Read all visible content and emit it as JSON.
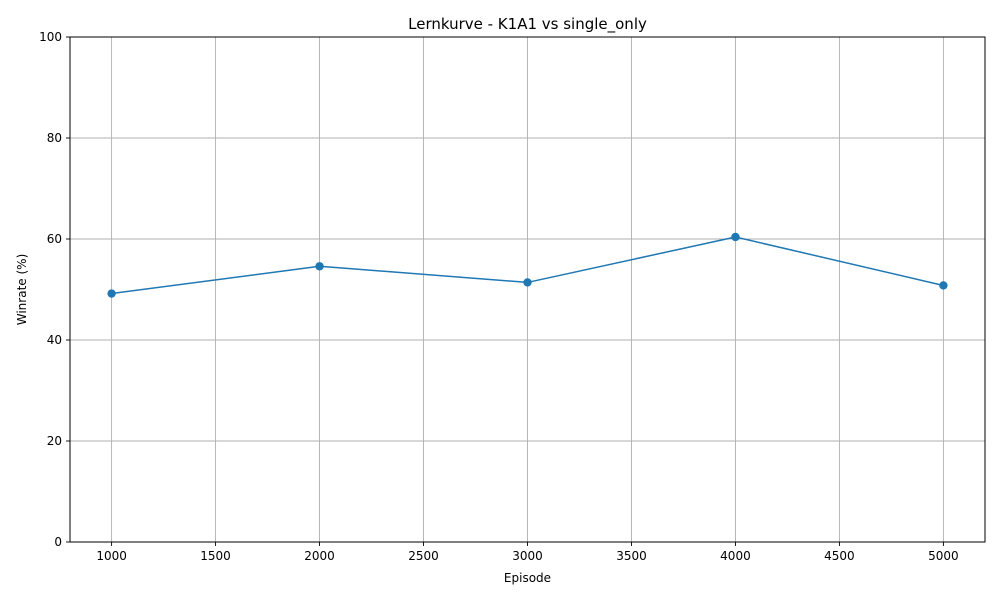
{
  "chart_data": {
    "type": "line",
    "title": "Lernkurve - K1A1 vs single_only",
    "xlabel": "Episode",
    "ylabel": "Winrate (%)",
    "xlim": [
      800,
      5200
    ],
    "ylim": [
      0,
      100
    ],
    "xticks": [
      1000,
      1500,
      2000,
      2500,
      3000,
      3500,
      4000,
      4500,
      5000
    ],
    "yticks": [
      0,
      20,
      40,
      60,
      80,
      100
    ],
    "grid": true,
    "legend": "none",
    "series": [
      {
        "color": "#1f77b4",
        "marker": "circle",
        "x": [
          1000,
          2000,
          3000,
          4000,
          5000
        ],
        "y": [
          49.2,
          54.6,
          51.4,
          60.4,
          50.8
        ]
      }
    ]
  }
}
